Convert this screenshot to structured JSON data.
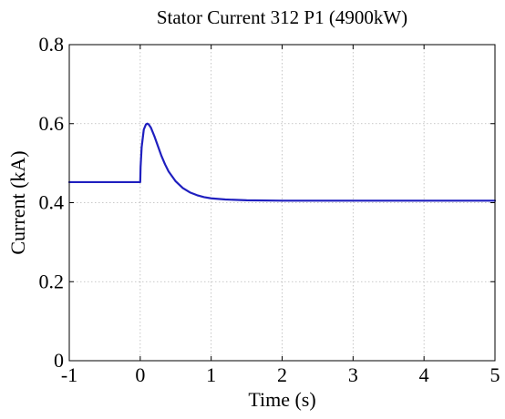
{
  "chart_data": {
    "type": "line",
    "title": "Stator Current 312 P1 (4900kW)",
    "xlabel": "Time (s)",
    "ylabel": "Current (kA)",
    "xlim": [
      -1,
      5
    ],
    "ylim": [
      0,
      0.8
    ],
    "x_ticks": [
      -1,
      0,
      1,
      2,
      3,
      4,
      5
    ],
    "x_tick_labels": [
      "-1",
      "0",
      "1",
      "2",
      "3",
      "4",
      "5"
    ],
    "y_ticks": [
      0,
      0.2,
      0.4,
      0.6,
      0.8
    ],
    "y_tick_labels": [
      "0",
      "0.2",
      "0.4",
      "0.6",
      "0.8"
    ],
    "grid": true,
    "legend": "none",
    "series": [
      {
        "color": "#1f1fbf",
        "x": [
          -1,
          -0.5,
          0,
          0.005,
          0.02,
          0.05,
          0.08,
          0.1,
          0.12,
          0.15,
          0.2,
          0.25,
          0.3,
          0.35,
          0.4,
          0.5,
          0.6,
          0.7,
          0.8,
          0.9,
          1.0,
          1.2,
          1.5,
          2.0,
          3.0,
          4.0,
          5.0
        ],
        "y": [
          0.452,
          0.452,
          0.452,
          0.49,
          0.54,
          0.585,
          0.598,
          0.6,
          0.598,
          0.59,
          0.568,
          0.543,
          0.518,
          0.497,
          0.479,
          0.454,
          0.437,
          0.426,
          0.419,
          0.414,
          0.411,
          0.408,
          0.406,
          0.405,
          0.405,
          0.405,
          0.405
        ]
      }
    ]
  }
}
